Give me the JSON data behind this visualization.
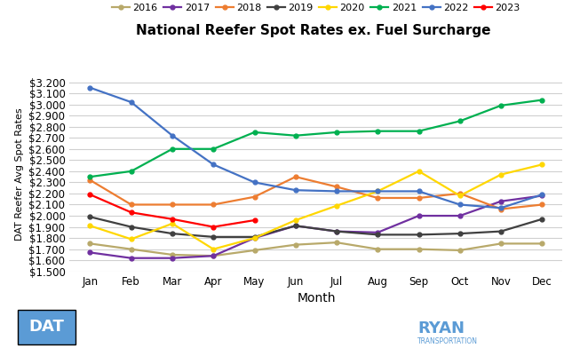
{
  "title": "National Reefer Spot Rates ex. Fuel Surcharge",
  "xlabel": "Month",
  "ylabel": "DAT Reefer Avg Spot Rates",
  "months": [
    "Jan",
    "Feb",
    "Mar",
    "Apr",
    "May",
    "Jun",
    "Jul",
    "Aug",
    "Sep",
    "Oct",
    "Nov",
    "Dec"
  ],
  "ylim": [
    1.5,
    3.25
  ],
  "yticks": [
    1.5,
    1.6,
    1.7,
    1.8,
    1.9,
    2.0,
    2.1,
    2.2,
    2.3,
    2.4,
    2.5,
    2.6,
    2.7,
    2.8,
    2.9,
    3.0,
    3.1,
    3.2
  ],
  "series": {
    "2016": {
      "color": "#b8a96a",
      "data": [
        1.75,
        1.7,
        1.65,
        1.64,
        1.69,
        1.74,
        1.76,
        1.7,
        1.7,
        1.69,
        1.75,
        1.75
      ]
    },
    "2017": {
      "color": "#7030a0",
      "data": [
        1.67,
        1.62,
        1.62,
        1.64,
        1.8,
        1.91,
        1.86,
        1.85,
        2.0,
        2.0,
        2.13,
        2.18
      ]
    },
    "2018": {
      "color": "#ed7d31",
      "data": [
        2.32,
        2.1,
        2.1,
        2.1,
        2.17,
        2.35,
        2.26,
        2.16,
        2.16,
        2.2,
        2.06,
        2.1
      ]
    },
    "2019": {
      "color": "#404040",
      "data": [
        1.99,
        1.9,
        1.84,
        1.81,
        1.81,
        1.91,
        1.86,
        1.83,
        1.83,
        1.84,
        1.86,
        1.97
      ]
    },
    "2020": {
      "color": "#ffd700",
      "data": [
        1.91,
        1.79,
        1.93,
        1.7,
        1.8,
        1.96,
        2.09,
        2.22,
        2.4,
        2.18,
        2.37,
        2.46
      ]
    },
    "2021": {
      "color": "#00b050",
      "data": [
        2.35,
        2.4,
        2.6,
        2.6,
        2.75,
        2.72,
        2.75,
        2.76,
        2.76,
        2.85,
        2.99,
        3.04
      ]
    },
    "2022": {
      "color": "#4472c4",
      "data": [
        3.15,
        3.02,
        2.72,
        2.46,
        2.3,
        2.23,
        2.22,
        2.22,
        2.22,
        2.1,
        2.07,
        2.19
      ]
    },
    "2023": {
      "color": "#ff0000",
      "data": [
        2.19,
        2.03,
        1.97,
        1.9,
        1.96,
        null,
        null,
        null,
        null,
        null,
        null,
        null
      ]
    }
  },
  "legend_order": [
    "2016",
    "2017",
    "2018",
    "2019",
    "2020",
    "2021",
    "2022",
    "2023"
  ],
  "background_color": "#ffffff",
  "grid_color": "#d0d0d0",
  "dat_logo_color": "#5b9bd5",
  "ryan_logo_color": "#5b9bd5"
}
